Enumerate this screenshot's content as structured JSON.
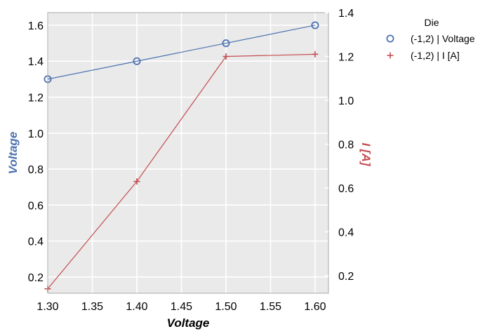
{
  "chart_data": {
    "type": "line",
    "x": [
      1.3,
      1.4,
      1.5,
      1.6
    ],
    "xlim": [
      1.3,
      1.615
    ],
    "xticks": [
      "1.30",
      "1.35",
      "1.40",
      "1.45",
      "1.50",
      "1.55",
      "1.60"
    ],
    "xlabel": "Voltage",
    "ylabel_left": "Voltage",
    "ylabel_right": "I [A]",
    "ylim_left": [
      0.11,
      1.67
    ],
    "ylim_right": [
      0.12,
      1.4
    ],
    "yticks_left": [
      "0.2",
      "0.4",
      "0.6",
      "0.8",
      "1.0",
      "1.2",
      "1.4",
      "1.6"
    ],
    "yticks_right": [
      "0.2",
      "0.4",
      "0.6",
      "0.8",
      "1.0",
      "1.2",
      "1.4"
    ],
    "grid": true,
    "series": [
      {
        "name": "(-1,2) | Voltage",
        "axis": "left",
        "marker": "o",
        "color": "#4c72b0",
        "values": [
          1.3,
          1.4,
          1.5,
          1.6
        ]
      },
      {
        "name": "(-1,2) | I [A]",
        "axis": "right",
        "marker": "+",
        "color": "#c44e52",
        "values": [
          0.14,
          0.63,
          1.2,
          1.21
        ]
      }
    ],
    "legend": {
      "title": "Die",
      "placement": "outside-top-right"
    },
    "colors": {
      "plot_bg": "#eaeaea",
      "grid": "#ffffff",
      "left_label": "#4c72b0",
      "right_label": "#c44e52"
    }
  }
}
